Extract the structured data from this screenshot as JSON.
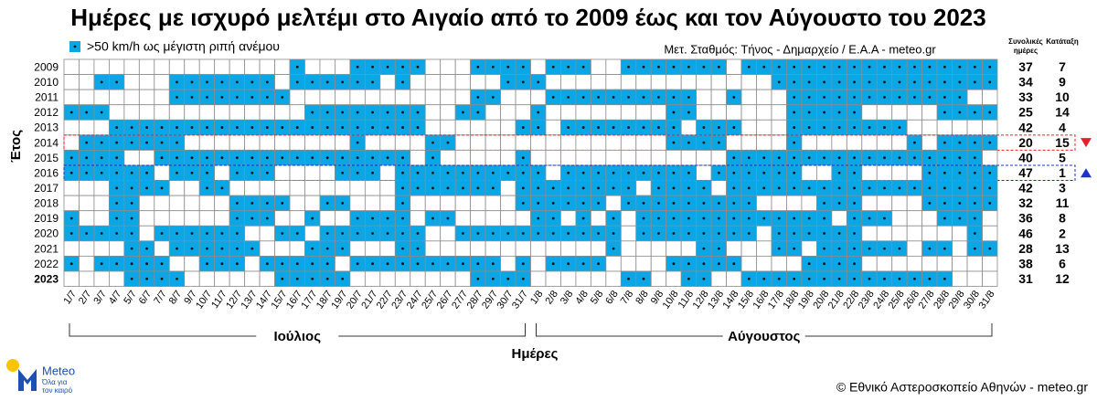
{
  "chart_data": {
    "type": "heatmap",
    "title": "Ημέρες με ισχυρό μελτέμι στο Αιγαίο από το 2009 έως και τον Αύγουστο του 2023",
    "legend_label": ">50 km/h ως μέγιστη ριπή ανέμου",
    "source": "Μετ. Σταθμός: Τήνος - Δημαρχείο / Ε.Α.Α - meteo.gr",
    "x_label": "Ημέρες",
    "y_label": "Έτος",
    "months": [
      {
        "name": "Ιούλιος",
        "from": 0,
        "to": 30
      },
      {
        "name": "Αύγουστος",
        "from": 31,
        "to": 61
      }
    ],
    "total_header": [
      "Συνολικές",
      "ημέρες"
    ],
    "rank_header": "Κατάταξη",
    "color": "#0aa6e6",
    "empty_color": "#ffffff",
    "dots": true,
    "categories": [
      "1/7",
      "2/7",
      "3/7",
      "4/7",
      "5/7",
      "6/7",
      "7/7",
      "8/7",
      "9/7",
      "10/7",
      "11/7",
      "12/7",
      "13/7",
      "14/7",
      "15/7",
      "16/7",
      "17/7",
      "18/7",
      "19/7",
      "20/7",
      "21/7",
      "22/7",
      "23/7",
      "24/7",
      "25/7",
      "26/7",
      "27/7",
      "28/7",
      "29/7",
      "30/7",
      "31/7",
      "1/8",
      "2/8",
      "3/8",
      "4/8",
      "5/8",
      "6/8",
      "7/8",
      "8/8",
      "9/8",
      "10/8",
      "11/8",
      "12/8",
      "13/8",
      "14/8",
      "15/8",
      "16/8",
      "17/8",
      "18/8",
      "19/8",
      "20/8",
      "21/8",
      "22/8",
      "23/8",
      "24/8",
      "25/8",
      "26/8",
      "27/8",
      "28/8",
      "29/8",
      "30/8",
      "31/8"
    ],
    "rows": [
      {
        "name": "2009",
        "total": 37,
        "rank": 7,
        "values": [
          0,
          0,
          0,
          0,
          0,
          0,
          0,
          0,
          0,
          0,
          0,
          0,
          0,
          0,
          0,
          1,
          0,
          0,
          0,
          1,
          1,
          1,
          1,
          1,
          0,
          0,
          0,
          1,
          1,
          1,
          1,
          0,
          1,
          1,
          1,
          0,
          0,
          1,
          1,
          1,
          1,
          1,
          1,
          1,
          0,
          1,
          1,
          1,
          1,
          1,
          1,
          1,
          1,
          1,
          1,
          1,
          1,
          1,
          1,
          1,
          1,
          1
        ]
      },
      {
        "name": "2010",
        "total": 34,
        "rank": 9,
        "values": [
          0,
          0,
          1,
          1,
          0,
          0,
          0,
          1,
          1,
          1,
          1,
          1,
          1,
          1,
          0,
          1,
          1,
          1,
          1,
          1,
          1,
          0,
          1,
          0,
          0,
          0,
          0,
          0,
          0,
          1,
          1,
          1,
          0,
          0,
          0,
          0,
          0,
          0,
          0,
          0,
          0,
          0,
          0,
          0,
          0,
          0,
          0,
          1,
          1,
          1,
          1,
          1,
          1,
          1,
          1,
          1,
          1,
          1,
          1,
          1,
          1,
          1
        ]
      },
      {
        "name": "2011",
        "total": 33,
        "rank": 10,
        "values": [
          0,
          0,
          0,
          0,
          0,
          0,
          0,
          1,
          1,
          1,
          1,
          1,
          1,
          1,
          1,
          0,
          0,
          0,
          0,
          0,
          0,
          0,
          0,
          0,
          0,
          0,
          0,
          1,
          1,
          0,
          0,
          0,
          1,
          1,
          1,
          1,
          1,
          1,
          1,
          1,
          1,
          1,
          0,
          0,
          1,
          0,
          0,
          0,
          1,
          1,
          1,
          1,
          1,
          1,
          1,
          1,
          1,
          1,
          1,
          1,
          0,
          0
        ]
      },
      {
        "name": "2012",
        "total": 25,
        "rank": 14,
        "values": [
          1,
          1,
          1,
          0,
          0,
          0,
          0,
          0,
          0,
          0,
          0,
          0,
          0,
          0,
          0,
          0,
          1,
          1,
          1,
          1,
          1,
          1,
          1,
          1,
          0,
          0,
          1,
          1,
          0,
          0,
          0,
          1,
          0,
          0,
          0,
          0,
          0,
          0,
          0,
          0,
          1,
          1,
          0,
          0,
          0,
          0,
          0,
          0,
          1,
          1,
          1,
          1,
          1,
          0,
          0,
          0,
          0,
          0,
          1,
          1,
          1,
          1
        ]
      },
      {
        "name": "2013",
        "total": 42,
        "rank": 4,
        "values": [
          0,
          0,
          0,
          1,
          1,
          1,
          1,
          1,
          1,
          1,
          1,
          1,
          1,
          1,
          1,
          1,
          1,
          1,
          1,
          1,
          1,
          1,
          1,
          1,
          0,
          0,
          0,
          0,
          0,
          0,
          1,
          1,
          0,
          1,
          1,
          1,
          1,
          1,
          1,
          1,
          1,
          0,
          1,
          1,
          1,
          0,
          0,
          0,
          1,
          1,
          1,
          1,
          1,
          1,
          1,
          1,
          0,
          0,
          0,
          0,
          0,
          0
        ]
      },
      {
        "name": "2014",
        "total": 20,
        "rank": 15,
        "highlight": "#e8202a",
        "marker": "down",
        "values": [
          0,
          1,
          1,
          1,
          1,
          1,
          1,
          1,
          0,
          0,
          0,
          0,
          0,
          0,
          0,
          0,
          0,
          0,
          0,
          1,
          0,
          0,
          0,
          0,
          1,
          1,
          0,
          0,
          0,
          0,
          0,
          0,
          0,
          0,
          0,
          0,
          0,
          0,
          0,
          0,
          1,
          1,
          1,
          1,
          0,
          0,
          0,
          0,
          1,
          0,
          0,
          0,
          0,
          0,
          0,
          0,
          1,
          0,
          1,
          1,
          1,
          1
        ]
      },
      {
        "name": "2015",
        "total": 40,
        "rank": 5,
        "values": [
          1,
          1,
          1,
          1,
          0,
          0,
          1,
          1,
          1,
          1,
          1,
          1,
          1,
          1,
          1,
          1,
          1,
          1,
          1,
          1,
          1,
          1,
          1,
          0,
          1,
          0,
          0,
          0,
          0,
          0,
          1,
          0,
          0,
          0,
          0,
          0,
          0,
          0,
          0,
          0,
          0,
          0,
          0,
          0,
          1,
          1,
          1,
          1,
          1,
          1,
          1,
          1,
          1,
          1,
          1,
          1,
          1,
          1,
          1,
          1,
          1,
          0
        ]
      },
      {
        "name": "2016",
        "total": 47,
        "rank": 1,
        "highlight": "#1f2fd0",
        "marker": "up",
        "values": [
          1,
          1,
          1,
          1,
          1,
          1,
          0,
          1,
          1,
          1,
          0,
          1,
          1,
          1,
          0,
          0,
          0,
          0,
          1,
          1,
          1,
          0,
          1,
          1,
          1,
          1,
          1,
          1,
          1,
          1,
          1,
          1,
          0,
          1,
          1,
          1,
          1,
          1,
          1,
          1,
          1,
          1,
          0,
          1,
          1,
          1,
          1,
          1,
          1,
          0,
          0,
          1,
          1,
          0,
          0,
          0,
          0,
          1,
          1,
          1,
          1,
          1
        ]
      },
      {
        "name": "2017",
        "total": 42,
        "rank": 3,
        "values": [
          0,
          0,
          0,
          1,
          1,
          1,
          1,
          0,
          0,
          1,
          1,
          0,
          0,
          0,
          0,
          0,
          0,
          0,
          0,
          0,
          0,
          0,
          1,
          1,
          1,
          1,
          1,
          1,
          1,
          0,
          1,
          1,
          1,
          1,
          1,
          1,
          1,
          1,
          0,
          1,
          1,
          1,
          1,
          0,
          1,
          1,
          1,
          1,
          1,
          1,
          1,
          1,
          1,
          1,
          1,
          1,
          1,
          1,
          1,
          1,
          1,
          1
        ]
      },
      {
        "name": "2018",
        "total": 32,
        "rank": 11,
        "values": [
          0,
          0,
          0,
          1,
          1,
          0,
          0,
          0,
          0,
          0,
          0,
          1,
          1,
          1,
          1,
          0,
          0,
          1,
          1,
          0,
          0,
          0,
          1,
          0,
          0,
          0,
          0,
          0,
          0,
          0,
          1,
          1,
          1,
          1,
          1,
          1,
          0,
          1,
          1,
          1,
          1,
          1,
          1,
          1,
          1,
          1,
          0,
          0,
          0,
          0,
          1,
          1,
          1,
          0,
          0,
          0,
          0,
          1,
          1,
          1,
          1,
          1
        ]
      },
      {
        "name": "2019",
        "total": 36,
        "rank": 8,
        "values": [
          1,
          0,
          0,
          1,
          1,
          0,
          0,
          0,
          0,
          0,
          0,
          1,
          1,
          1,
          0,
          0,
          1,
          0,
          0,
          1,
          1,
          1,
          1,
          0,
          1,
          1,
          0,
          0,
          0,
          0,
          0,
          1,
          1,
          0,
          1,
          0,
          1,
          0,
          1,
          1,
          1,
          1,
          1,
          1,
          1,
          1,
          1,
          1,
          1,
          1,
          1,
          0,
          1,
          1,
          1,
          0,
          0,
          0,
          1,
          1,
          1,
          0
        ]
      },
      {
        "name": "2020",
        "total": 46,
        "rank": 2,
        "values": [
          1,
          1,
          1,
          1,
          1,
          0,
          1,
          1,
          1,
          1,
          1,
          1,
          0,
          0,
          1,
          1,
          0,
          1,
          1,
          1,
          1,
          1,
          1,
          1,
          0,
          0,
          1,
          1,
          1,
          1,
          1,
          1,
          1,
          1,
          1,
          1,
          1,
          0,
          1,
          1,
          1,
          1,
          1,
          1,
          1,
          1,
          0,
          1,
          1,
          1,
          1,
          1,
          1,
          0,
          0,
          0,
          0,
          0,
          0,
          0,
          1,
          0
        ]
      },
      {
        "name": "2021",
        "total": 28,
        "rank": 13,
        "values": [
          0,
          0,
          0,
          0,
          1,
          1,
          0,
          1,
          1,
          1,
          1,
          1,
          1,
          0,
          0,
          0,
          1,
          1,
          1,
          0,
          0,
          0,
          1,
          1,
          0,
          0,
          0,
          0,
          0,
          0,
          0,
          0,
          0,
          0,
          0,
          0,
          1,
          0,
          0,
          0,
          0,
          0,
          1,
          1,
          0,
          0,
          0,
          1,
          1,
          0,
          1,
          1,
          1,
          1,
          1,
          1,
          0,
          1,
          1,
          0,
          1,
          1
        ]
      },
      {
        "name": "2022",
        "total": 38,
        "rank": 6,
        "values": [
          1,
          0,
          1,
          1,
          1,
          1,
          1,
          0,
          0,
          1,
          1,
          1,
          0,
          1,
          1,
          1,
          1,
          1,
          0,
          1,
          1,
          1,
          1,
          1,
          1,
          1,
          1,
          1,
          1,
          0,
          1,
          0,
          1,
          1,
          1,
          1,
          0,
          0,
          0,
          0,
          1,
          1,
          1,
          1,
          1,
          0,
          0,
          0,
          0,
          1,
          1,
          1,
          1,
          0,
          0,
          0,
          0,
          0,
          0,
          0,
          0,
          0
        ]
      },
      {
        "name": "2023",
        "total": 31,
        "rank": 12,
        "bold": true,
        "values": [
          0,
          0,
          0,
          0,
          1,
          1,
          1,
          1,
          0,
          0,
          0,
          0,
          0,
          0,
          1,
          1,
          1,
          1,
          1,
          0,
          0,
          0,
          0,
          0,
          0,
          0,
          0,
          1,
          1,
          1,
          1,
          0,
          0,
          0,
          0,
          0,
          0,
          1,
          1,
          0,
          0,
          1,
          1,
          0,
          0,
          1,
          1,
          1,
          1,
          1,
          1,
          1,
          1,
          1,
          1,
          1,
          1,
          1,
          1,
          0,
          0,
          0
        ]
      }
    ]
  },
  "logo": {
    "name": "Meteo",
    "tagline": [
      "Όλα για",
      "τον καιρό"
    ]
  },
  "footer": "© Εθνικό Αστεροσκοπείο Αθηνών - meteo.gr"
}
